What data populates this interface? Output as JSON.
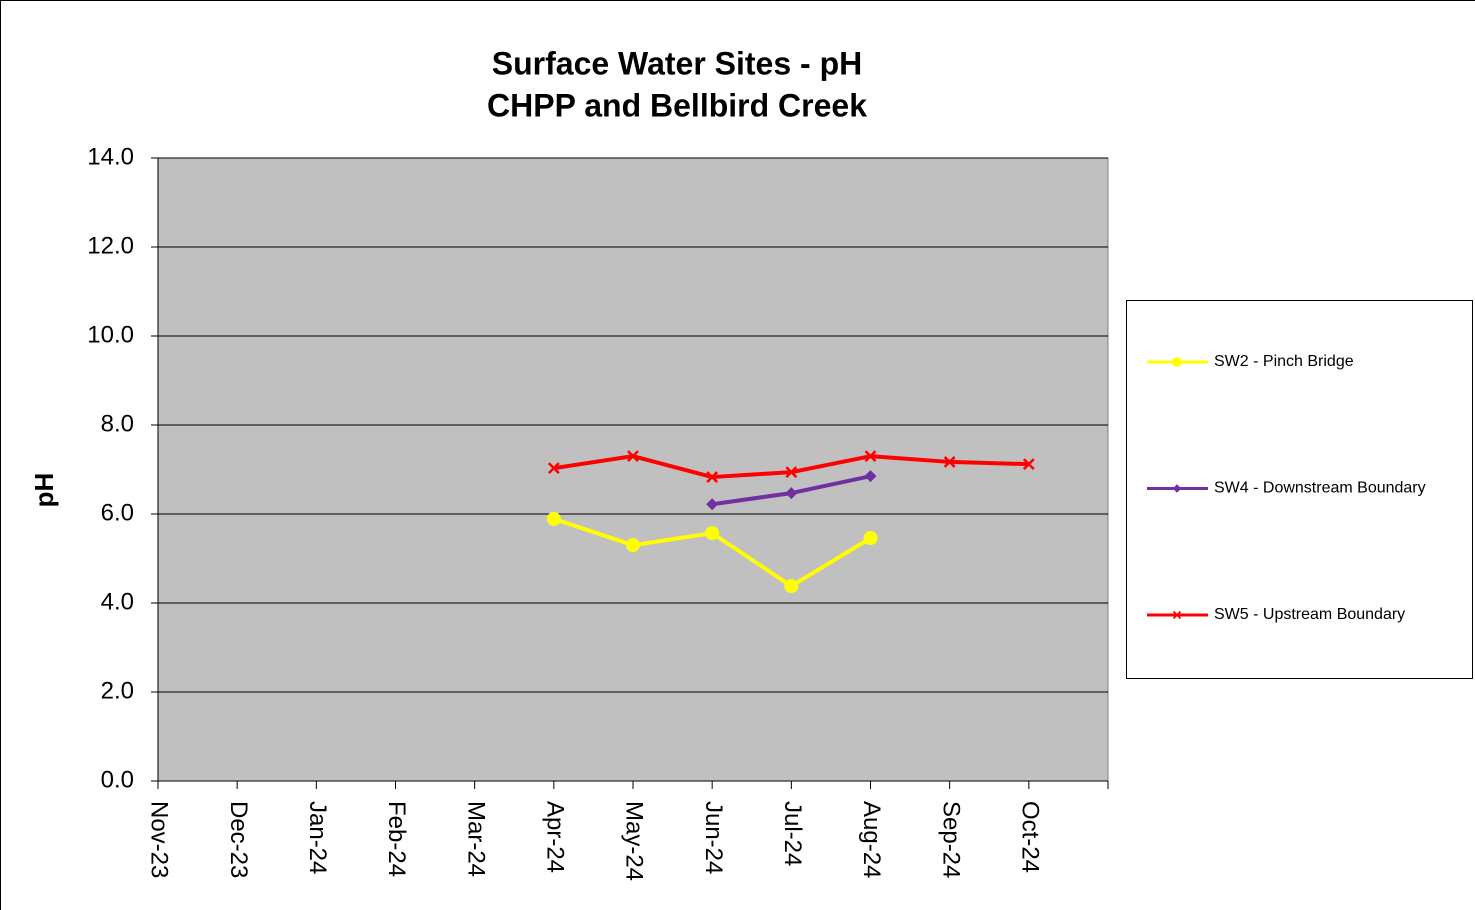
{
  "chart_data": {
    "type": "line",
    "title": "Surface Water Sites - pH",
    "subtitle": "CHPP and Bellbird Creek",
    "y_label": "pH",
    "categories": [
      "Nov-23",
      "Dec-23",
      "Jan-24",
      "Feb-24",
      "Mar-24",
      "Apr-24",
      "May-24",
      "Jun-24",
      "Jul-24",
      "Aug-24",
      "Sep-24",
      "Oct-24"
    ],
    "series": [
      {
        "name": "SW2 - Pinch Bridge",
        "color": "#ffff00",
        "marker": "circle",
        "values": [
          null,
          null,
          null,
          null,
          null,
          5.89,
          5.3,
          5.57,
          4.38,
          5.46,
          null,
          null
        ]
      },
      {
        "name": "SW4 - Downstream Boundary",
        "color": "#7030a0",
        "marker": "diamond",
        "values": [
          null,
          null,
          null,
          null,
          null,
          null,
          null,
          6.22,
          6.47,
          6.85,
          null,
          null
        ]
      },
      {
        "name": "SW5 - Upstream Boundary",
        "color": "#ff0000",
        "marker": "x",
        "values": [
          null,
          null,
          null,
          null,
          null,
          7.03,
          7.3,
          6.83,
          6.94,
          7.3,
          7.17,
          7.12
        ]
      }
    ],
    "ylim": [
      0,
      14
    ],
    "yticks": [
      {
        "value": 0,
        "label": "0.0"
      },
      {
        "value": 2,
        "label": "2.0"
      },
      {
        "value": 4,
        "label": "4.0"
      },
      {
        "value": 6,
        "label": "6.0"
      },
      {
        "value": 8,
        "label": "8.0"
      },
      {
        "value": 10,
        "label": "10.0"
      },
      {
        "value": 12,
        "label": "12.0"
      },
      {
        "value": 14,
        "label": "14.0"
      }
    ],
    "grid": true,
    "plot_background": "#c0c0c0",
    "legend": "right"
  }
}
